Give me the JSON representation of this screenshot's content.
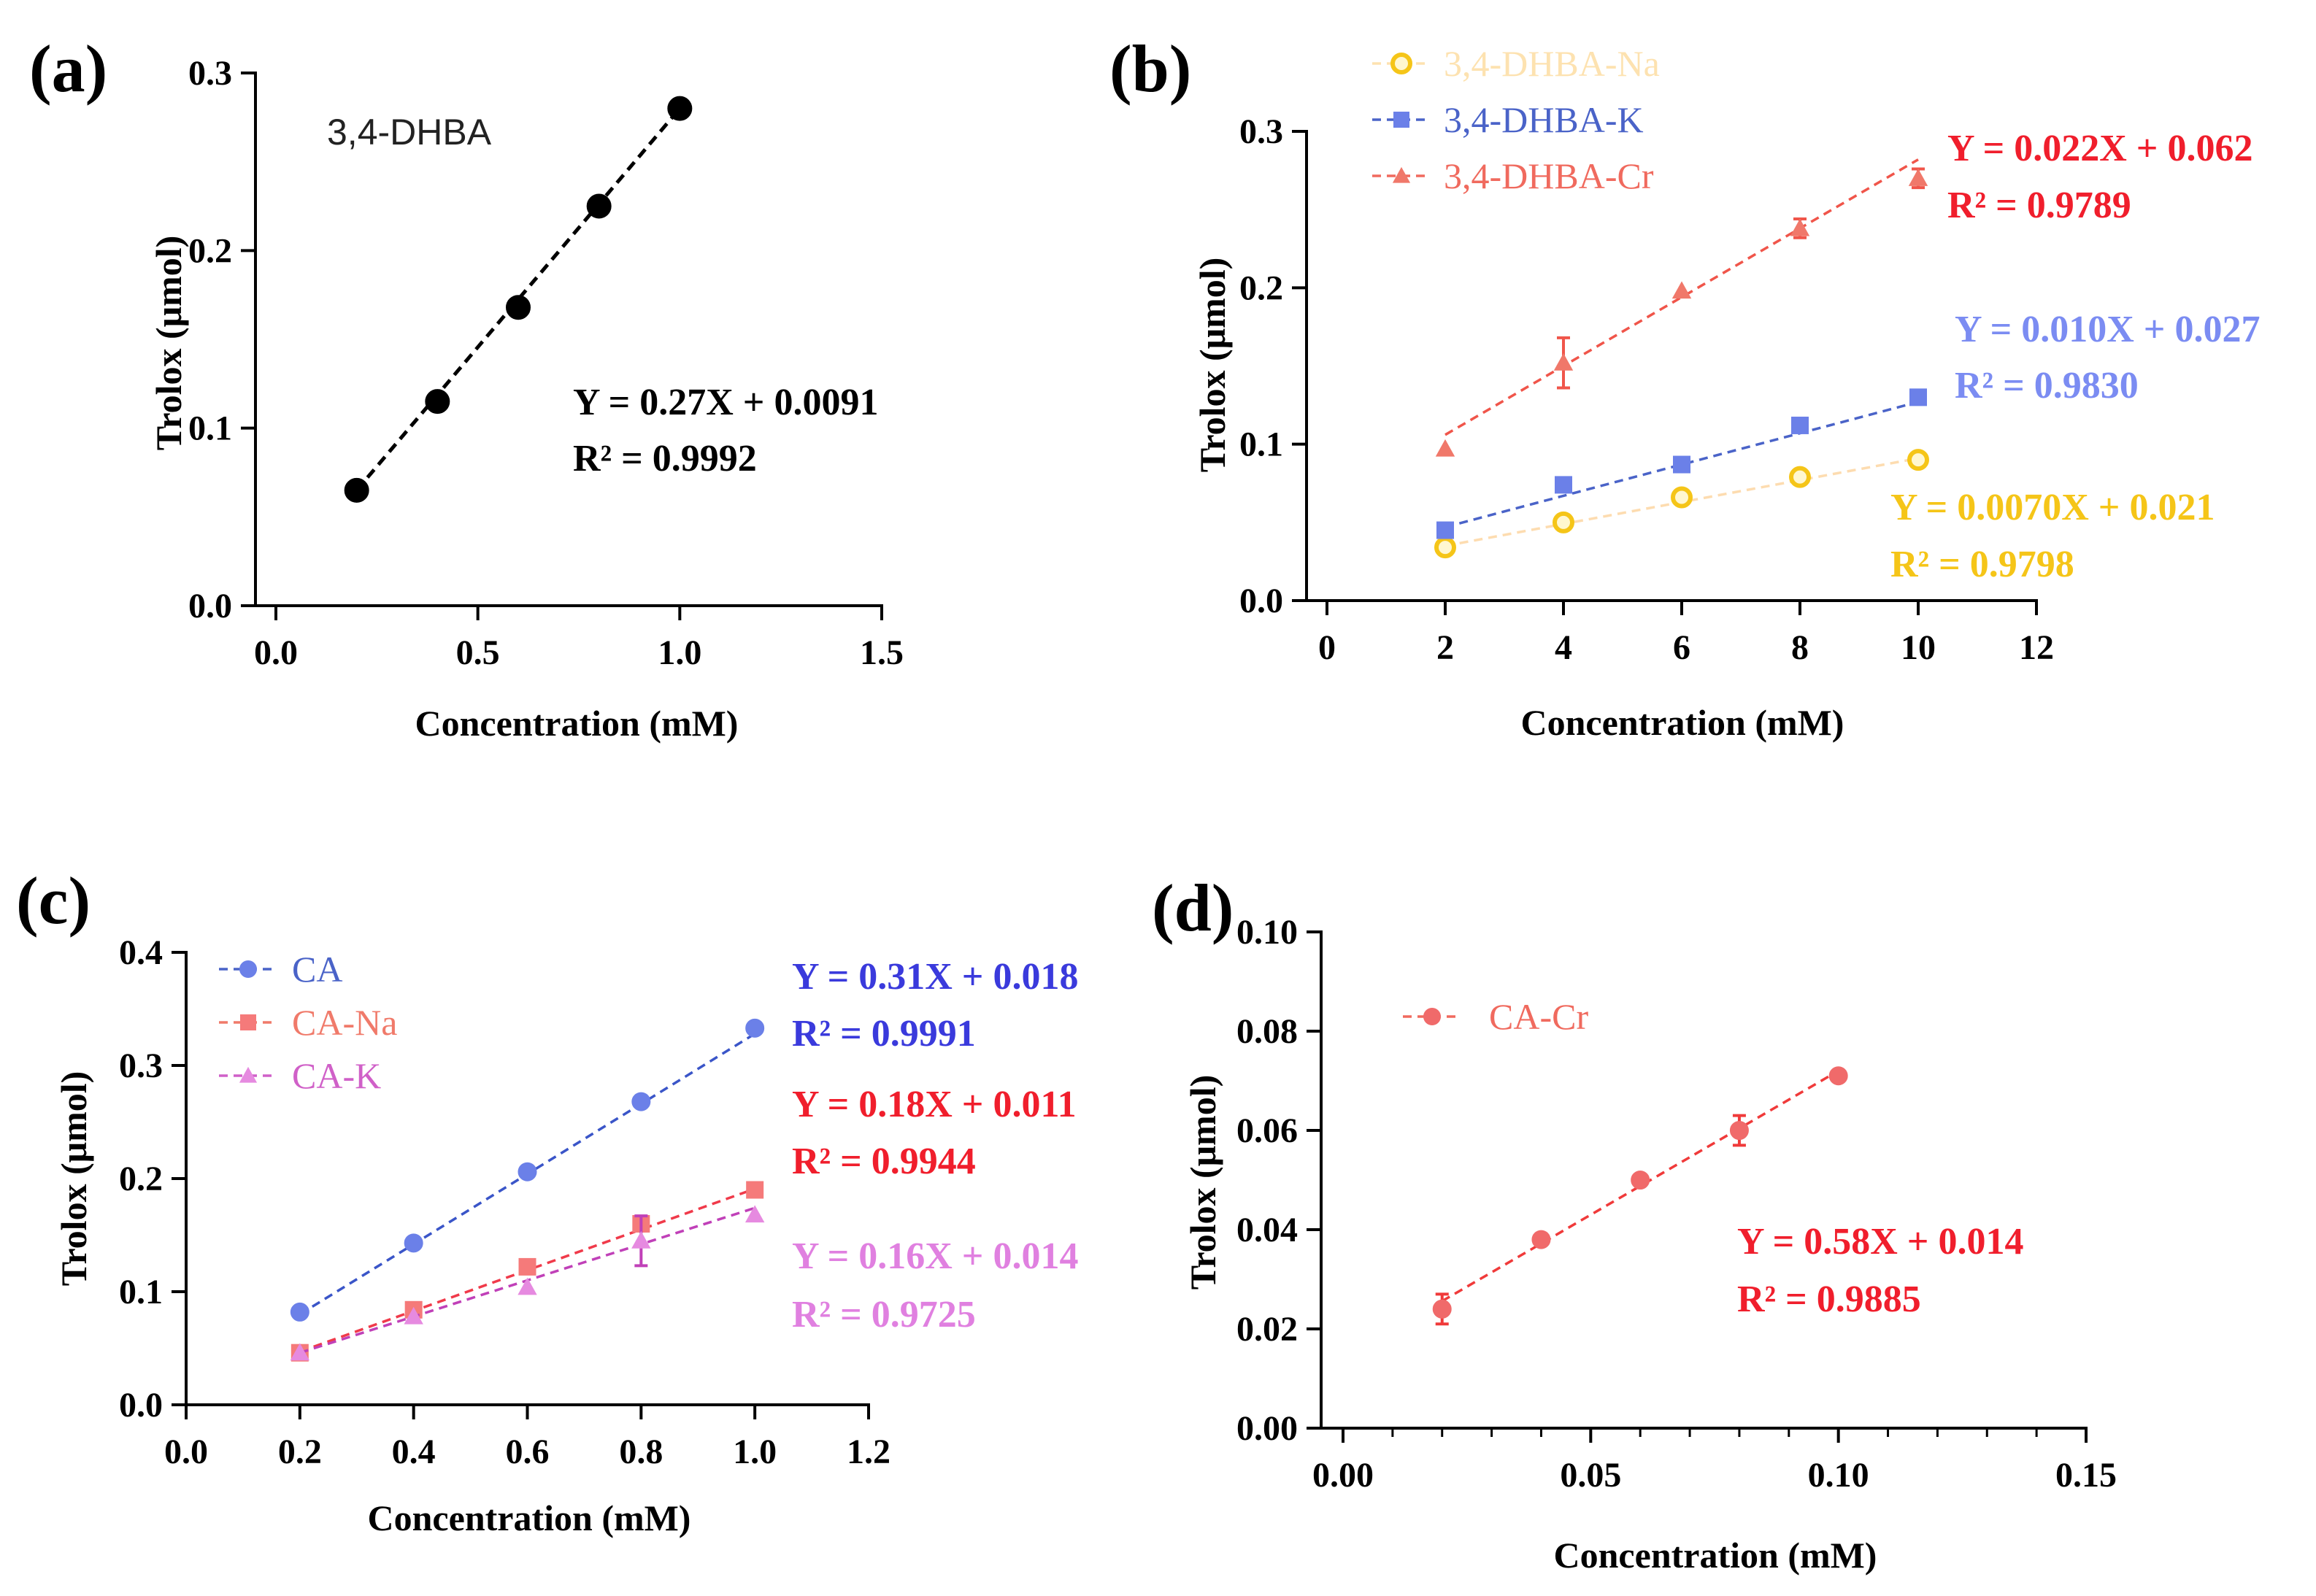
{
  "chart_data": [
    {
      "panel": "(a)",
      "type": "scatter",
      "xlabel": "Concentration (mM)",
      "ylabel": "Trolox (μmol)",
      "xlim": [
        0,
        1.5
      ],
      "ylim": [
        0,
        0.3
      ],
      "xticks": [
        "0.0",
        "0.5",
        "1.0",
        "1.5"
      ],
      "yticks": [
        "0.0",
        "0.1",
        "0.2",
        "0.3"
      ],
      "label": "3,4-DHBA",
      "series": [
        {
          "name": "3,4-DHBA",
          "color": "#000000",
          "marker": "circle",
          "x": [
            0.2,
            0.4,
            0.6,
            0.8,
            1.0
          ],
          "values": [
            0.065,
            0.115,
            0.168,
            0.225,
            0.28
          ],
          "fit": {
            "slope": 0.27,
            "intercept": 0.0091
          },
          "equation": "Y = 0.27X + 0.0091",
          "r2": "R² = 0.9992",
          "eq_color": "#000000"
        }
      ]
    },
    {
      "panel": "(b)",
      "type": "scatter",
      "xlabel": "Concentration (mM)",
      "ylabel": "Trolox (μmol)",
      "xlim": [
        0,
        12
      ],
      "ylim": [
        0,
        0.3
      ],
      "xticks": [
        "0",
        "2",
        "4",
        "6",
        "8",
        "10",
        "12"
      ],
      "yticks": [
        "0.0",
        "0.1",
        "0.2",
        "0.3"
      ],
      "series": [
        {
          "name": "3,4-DHBA-Na",
          "color": "#f5c518",
          "legend_color": "#fde2b0",
          "line_color": "#fddcb0",
          "marker": "circle",
          "x": [
            2,
            4,
            6,
            8,
            10
          ],
          "values": [
            0.034,
            0.05,
            0.066,
            0.079,
            0.09
          ],
          "fit": {
            "slope": 0.007,
            "intercept": 0.021
          },
          "equation": "Y = 0.0070X + 0.021",
          "r2": "R² = 0.9798",
          "eq_color": "#f5c518"
        },
        {
          "name": "3,4-DHBA-K",
          "color": "#6b80e8",
          "legend_color": "#4a63c8",
          "line_color": "#4a63c8",
          "marker": "square",
          "x": [
            2,
            4,
            6,
            8,
            10
          ],
          "values": [
            0.045,
            0.074,
            0.087,
            0.112,
            0.13
          ],
          "fit": {
            "slope": 0.01,
            "intercept": 0.027
          },
          "equation": "Y = 0.010X + 0.027",
          "r2": "R² = 0.9830",
          "eq_color": "#7b8cf2"
        },
        {
          "name": "3,4-DHBA-Cr",
          "color": "#f0786a",
          "legend_color": "#f06a5e",
          "line_color": "#f0554a",
          "marker": "triangle",
          "x": [
            2,
            4,
            6,
            8,
            10
          ],
          "values": [
            0.097,
            0.152,
            0.198,
            0.238,
            0.27
          ],
          "errors": [
            0,
            0.016,
            0,
            0.006,
            0.006
          ],
          "fit": {
            "slope": 0.022,
            "intercept": 0.062
          },
          "equation": "Y = 0.022X + 0.062",
          "r2": "R² = 0.9789",
          "eq_color": "#f01e2c"
        }
      ]
    },
    {
      "panel": "(c)",
      "type": "scatter",
      "xlabel": "Concentration (mM)",
      "ylabel": "Trolox (μmol)",
      "xlim": [
        0,
        1.2
      ],
      "ylim": [
        0,
        0.4
      ],
      "xticks": [
        "0.0",
        "0.2",
        "0.4",
        "0.6",
        "0.8",
        "1.0",
        "1.2"
      ],
      "yticks": [
        "0.0",
        "0.1",
        "0.2",
        "0.3",
        "0.4"
      ],
      "series": [
        {
          "name": "CA",
          "color": "#6b80e8",
          "legend_color": "#4a63c8",
          "line_color": "#3a55c8",
          "marker": "circle",
          "x": [
            0.2,
            0.4,
            0.6,
            0.8,
            1.0
          ],
          "values": [
            0.082,
            0.143,
            0.206,
            0.268,
            0.333
          ],
          "fit": {
            "slope": 0.31,
            "intercept": 0.018
          },
          "equation": "Y = 0.31X + 0.018",
          "r2": "R² = 0.9991",
          "eq_color": "#3a3adc"
        },
        {
          "name": "CA-Na",
          "color": "#f57a7a",
          "legend_color": "#f07a6a",
          "line_color": "#f03a4a",
          "marker": "square",
          "x": [
            0.2,
            0.4,
            0.6,
            0.8,
            1.0
          ],
          "values": [
            0.046,
            0.084,
            0.122,
            0.16,
            0.19
          ],
          "errors": [
            0,
            0,
            0,
            0.006,
            0
          ],
          "fit": {
            "slope": 0.18,
            "intercept": 0.011
          },
          "equation": "Y = 0.18X + 0.011",
          "r2": "R² = 0.9944",
          "eq_color": "#f01e2c"
        },
        {
          "name": "CA-K",
          "color": "#e68ae0",
          "legend_color": "#d060c8",
          "line_color": "#c040b8",
          "marker": "triangle",
          "x": [
            0.2,
            0.4,
            0.6,
            0.8,
            1.0
          ],
          "values": [
            0.046,
            0.078,
            0.104,
            0.145,
            0.168
          ],
          "errors": [
            0,
            0,
            0,
            0.022,
            0
          ],
          "fit": {
            "slope": 0.16,
            "intercept": 0.014
          },
          "equation": "Y = 0.16X + 0.014",
          "r2": "R² = 0.9725",
          "eq_color": "#e080e0"
        }
      ]
    },
    {
      "panel": "(d)",
      "type": "scatter",
      "xlabel": "Concentration (mM)",
      "ylabel": "Trolox (μmol)",
      "xlim": [
        0,
        0.15
      ],
      "ylim": [
        0,
        0.1
      ],
      "xticks": [
        "0.00",
        "0.05",
        "0.10",
        "0.15"
      ],
      "yticks": [
        "0.00",
        "0.02",
        "0.04",
        "0.06",
        "0.08",
        "0.10"
      ],
      "series": [
        {
          "name": "CA-Cr",
          "color": "#f06a6a",
          "legend_color": "#f06a5e",
          "line_color": "#f03a3a",
          "marker": "circle",
          "x": [
            0.02,
            0.04,
            0.06,
            0.08,
            0.1
          ],
          "values": [
            0.024,
            0.038,
            0.05,
            0.06,
            0.071
          ],
          "errors": [
            0.003,
            0,
            0,
            0.003,
            0
          ],
          "fit": {
            "slope": 0.58,
            "intercept": 0.014
          },
          "equation": "Y = 0.58X + 0.014",
          "r2": "R² = 0.9885",
          "eq_color": "#f01e2c"
        }
      ]
    }
  ]
}
